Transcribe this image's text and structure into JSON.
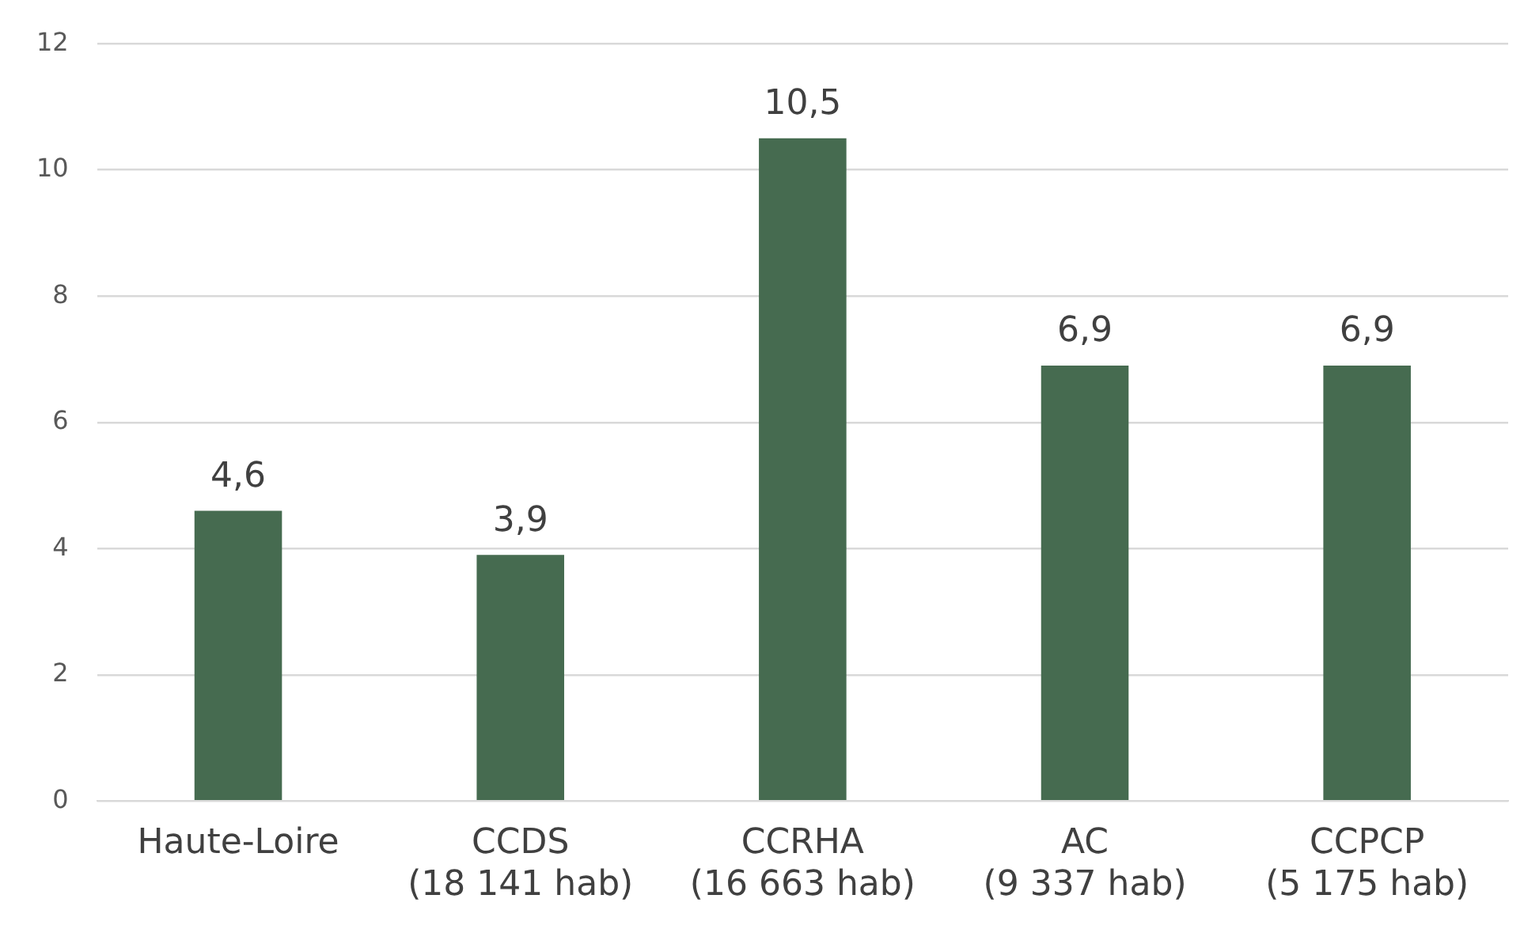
{
  "chart_data": {
    "type": "bar",
    "categories": [
      "Haute-Loire",
      "CCDS\n(18 141 hab)",
      "CCRHA\n(16 663 hab)",
      "AC\n(9 337 hab)",
      "CCPCP\n(5 175 hab)"
    ],
    "values": [
      4.6,
      3.9,
      10.5,
      6.9,
      6.9
    ],
    "value_labels": [
      "4,6",
      "3,9",
      "10,5",
      "6,9",
      "6,9"
    ],
    "color": "#466b50",
    "ylim": [
      0,
      12
    ],
    "yticks": [
      0,
      2,
      4,
      6,
      8,
      10,
      12
    ],
    "grid": "y",
    "legend": false
  }
}
